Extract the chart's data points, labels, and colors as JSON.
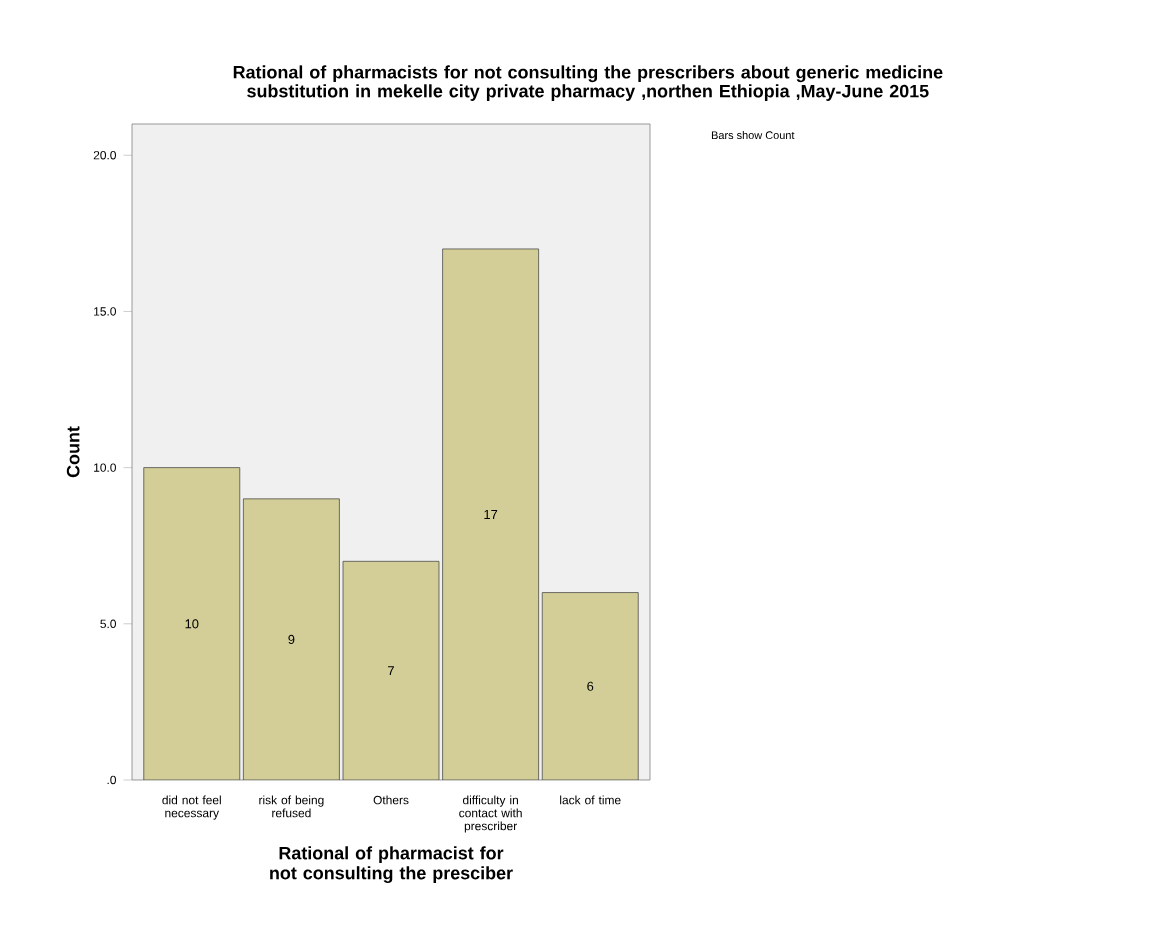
{
  "chart_data": {
    "type": "bar",
    "title": "Rational of pharmacists for not consulting the prescribers about generic medicine substitution in mekelle city private pharmacy ,northen Ethiopia ,May-June 2015",
    "xlabel": "Rational of pharmacist for not consulting the presciber",
    "ylabel": "Count",
    "categories": [
      "did not feel necessary",
      "risk of being refused",
      "Others",
      "difficulty in contact with prescriber",
      "lack of time"
    ],
    "values": [
      10,
      9,
      7,
      17,
      6
    ],
    "color": "#d3ce97",
    "data_labels": true,
    "ylim": [
      0,
      21
    ],
    "yticks": [
      {
        "value": 0,
        "label": ".0"
      },
      {
        "value": 5,
        "label": "5.0"
      },
      {
        "value": 10,
        "label": "10.0"
      },
      {
        "value": 15,
        "label": "15.0"
      },
      {
        "value": 20,
        "label": "20.0"
      }
    ],
    "annotations": [
      "Bars show Count"
    ]
  }
}
